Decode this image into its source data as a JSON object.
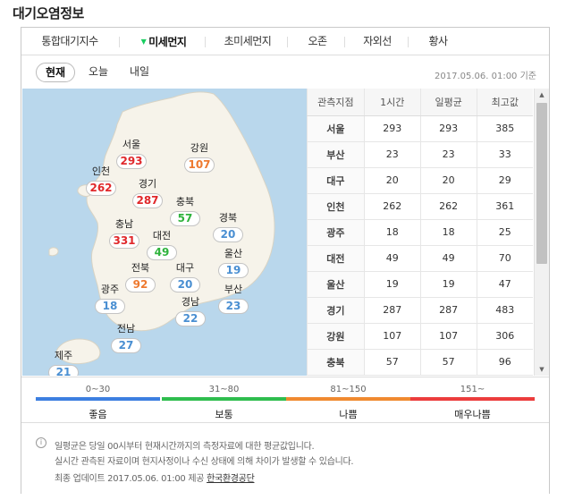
{
  "title": "대기오염정보",
  "tabs": [
    {
      "label": "통합대기지수"
    },
    {
      "label": "미세먼지",
      "active": true
    },
    {
      "label": "초미세먼지"
    },
    {
      "label": "오존"
    },
    {
      "label": "자외선"
    },
    {
      "label": "황사"
    }
  ],
  "subtabs": [
    {
      "label": "현재",
      "active": true
    },
    {
      "label": "오늘"
    },
    {
      "label": "내일"
    }
  ],
  "timestamp": "2017.05.06. 01:00 기준",
  "map": {
    "regions": [
      {
        "name": "서울",
        "value": "293",
        "level": "red"
      },
      {
        "name": "강원",
        "value": "107",
        "level": "orange"
      },
      {
        "name": "인천",
        "value": "262",
        "level": "red"
      },
      {
        "name": "경기",
        "value": "287",
        "level": "red"
      },
      {
        "name": "충북",
        "value": "57",
        "level": "green"
      },
      {
        "name": "경북",
        "value": "20",
        "level": "blue"
      },
      {
        "name": "충남",
        "value": "331",
        "level": "red"
      },
      {
        "name": "대전",
        "value": "49",
        "level": "green"
      },
      {
        "name": "울산",
        "value": "19",
        "level": "blue"
      },
      {
        "name": "전북",
        "value": "92",
        "level": "orange"
      },
      {
        "name": "대구",
        "value": "20",
        "level": "blue"
      },
      {
        "name": "부산",
        "value": "23",
        "level": "blue"
      },
      {
        "name": "광주",
        "value": "18",
        "level": "blue"
      },
      {
        "name": "경남",
        "value": "22",
        "level": "blue"
      },
      {
        "name": "전남",
        "value": "27",
        "level": "blue"
      },
      {
        "name": "제주",
        "value": "21",
        "level": "blue"
      }
    ]
  },
  "table": {
    "headers": [
      "관측지점",
      "1시간",
      "일평균",
      "최고값"
    ],
    "rows": [
      [
        "서울",
        "293",
        "293",
        "385"
      ],
      [
        "부산",
        "23",
        "23",
        "33"
      ],
      [
        "대구",
        "20",
        "20",
        "29"
      ],
      [
        "인천",
        "262",
        "262",
        "361"
      ],
      [
        "광주",
        "18",
        "18",
        "25"
      ],
      [
        "대전",
        "49",
        "49",
        "70"
      ],
      [
        "울산",
        "19",
        "19",
        "47"
      ],
      [
        "경기",
        "287",
        "287",
        "483"
      ],
      [
        "강원",
        "107",
        "107",
        "306"
      ],
      [
        "충북",
        "57",
        "57",
        "96"
      ]
    ]
  },
  "legend": [
    {
      "range": "0~30",
      "label": "좋음",
      "color": "#3d7fe0"
    },
    {
      "range": "31~80",
      "label": "보통",
      "color": "#2fbd4e"
    },
    {
      "range": "81~150",
      "label": "나쁨",
      "color": "#f08a30"
    },
    {
      "range": "151~",
      "label": "매우나쁨",
      "color": "#ec3d3d"
    }
  ],
  "notes": {
    "line1": "일평균은 당일 00시부터 현재시간까지의 측정자료에 대한 평균값입니다.",
    "line2": "실시간 관측된 자료이며 현지사정이나 수신 상태에 의해 차이가 발생할 수 있습니다.",
    "update_prefix": "최종 업데이트 2017.05.06. 01:00 제공",
    "provider": "한국환경공단"
  },
  "colors": {
    "red": "#e0282b",
    "orange": "#ee7a30",
    "green": "#2fb33d",
    "blue": "#4a8fd2"
  }
}
